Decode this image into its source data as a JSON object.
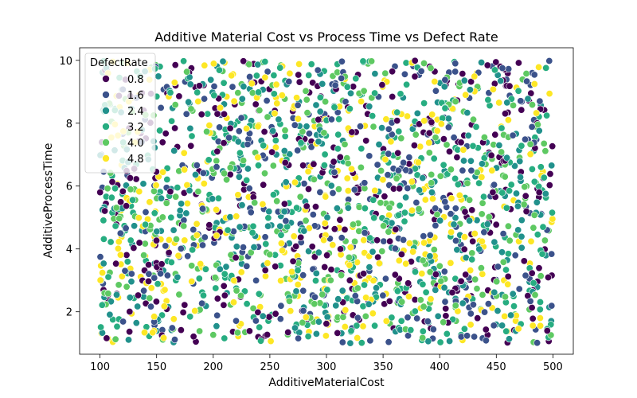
{
  "chart_data": {
    "type": "scatter",
    "title": "Additive Material Cost vs Process Time vs Defect Rate",
    "xlabel": "AdditiveMaterialCost",
    "ylabel": "AdditiveProcessTime",
    "xlim": [
      82,
      518
    ],
    "ylim": [
      0.65,
      10.4
    ],
    "xticks": [
      100,
      150,
      200,
      250,
      300,
      350,
      400,
      450,
      500
    ],
    "yticks": [
      2,
      4,
      6,
      8,
      10
    ],
    "grid": false,
    "colormap": "viridis",
    "hue_range": [
      0.1,
      5.0
    ],
    "hue_palette": [
      "#440154",
      "#3b528b",
      "#21918c",
      "#27ad81",
      "#5ec962",
      "#fde725"
    ],
    "marker_edge_color": "#ffffff",
    "point_count": 2000,
    "x_range": [
      100,
      500
    ],
    "y_range": [
      1.0,
      10.0
    ],
    "legend": {
      "title": "DefectRate",
      "placement": "upper-left",
      "entries": [
        {
          "label": "0.8",
          "color": "#440154"
        },
        {
          "label": "1.6",
          "color": "#3b528b"
        },
        {
          "label": "2.4",
          "color": "#21918c"
        },
        {
          "label": "3.2",
          "color": "#27ad81"
        },
        {
          "label": "4.0",
          "color": "#5ec962"
        },
        {
          "label": "4.8",
          "color": "#fde725"
        }
      ]
    }
  }
}
